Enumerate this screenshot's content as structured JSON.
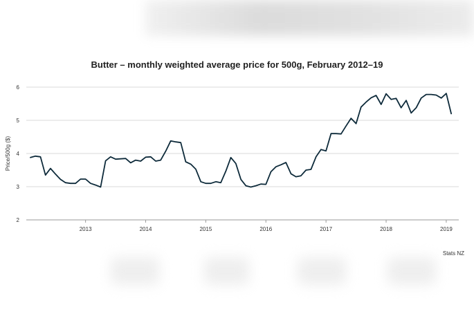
{
  "chart_data": {
    "type": "line",
    "title": "Butter – monthly weighted average price for 500g, February 2012–19",
    "xlabel": "",
    "ylabel": "Price/500g ($)",
    "source": "Stats NZ",
    "xlim": [
      "2012-02",
      "2019-02"
    ],
    "ylim": [
      2,
      6
    ],
    "yticks": [
      2,
      3,
      4,
      5,
      6
    ],
    "xticks": [
      "2013",
      "2014",
      "2015",
      "2016",
      "2017",
      "2018",
      "2019"
    ],
    "grid": "horizontal",
    "line_color": "#0d2a3a",
    "series": [
      {
        "x": [
          "2012-02",
          "2012-03",
          "2012-04",
          "2012-05",
          "2012-06",
          "2012-07",
          "2012-08",
          "2012-09",
          "2012-10",
          "2012-11",
          "2012-12",
          "2013-01",
          "2013-02",
          "2013-03",
          "2013-04",
          "2013-05",
          "2013-06",
          "2013-07",
          "2013-08",
          "2013-09",
          "2013-10",
          "2013-11",
          "2013-12",
          "2014-01",
          "2014-02",
          "2014-03",
          "2014-04",
          "2014-05",
          "2014-06",
          "2014-07",
          "2014-08",
          "2014-09",
          "2014-10",
          "2014-11",
          "2014-12",
          "2015-01",
          "2015-02",
          "2015-03",
          "2015-04",
          "2015-05",
          "2015-06",
          "2015-07",
          "2015-08",
          "2015-09",
          "2015-10",
          "2015-11",
          "2015-12",
          "2016-01",
          "2016-02",
          "2016-03",
          "2016-04",
          "2016-05",
          "2016-06",
          "2016-07",
          "2016-08",
          "2016-09",
          "2016-10",
          "2016-11",
          "2016-12",
          "2017-01",
          "2017-02",
          "2017-03",
          "2017-04",
          "2017-05",
          "2017-06",
          "2017-07",
          "2017-08",
          "2017-09",
          "2017-10",
          "2017-11",
          "2017-12",
          "2018-01",
          "2018-02",
          "2018-03",
          "2018-04",
          "2018-05",
          "2018-06",
          "2018-07",
          "2018-08",
          "2018-09",
          "2018-10",
          "2018-11",
          "2018-12",
          "2019-01",
          "2019-02"
        ],
        "y": [
          3.88,
          3.92,
          3.9,
          3.35,
          3.55,
          3.38,
          3.22,
          3.12,
          3.1,
          3.1,
          3.23,
          3.23,
          3.1,
          3.05,
          2.99,
          3.78,
          3.9,
          3.83,
          3.84,
          3.85,
          3.72,
          3.8,
          3.77,
          3.89,
          3.9,
          3.77,
          3.8,
          4.07,
          4.38,
          4.35,
          4.33,
          3.75,
          3.68,
          3.53,
          3.15,
          3.1,
          3.1,
          3.15,
          3.12,
          3.47,
          3.88,
          3.7,
          3.22,
          3.03,
          2.99,
          3.03,
          3.08,
          3.07,
          3.45,
          3.6,
          3.66,
          3.73,
          3.39,
          3.3,
          3.33,
          3.5,
          3.52,
          3.9,
          4.12,
          4.08,
          4.6,
          4.6,
          4.59,
          4.83,
          5.06,
          4.9,
          5.4,
          5.55,
          5.68,
          5.75,
          5.48,
          5.8,
          5.63,
          5.66,
          5.38,
          5.6,
          5.22,
          5.38,
          5.67,
          5.78,
          5.78,
          5.76,
          5.67,
          5.81,
          5.2
        ]
      }
    ]
  }
}
